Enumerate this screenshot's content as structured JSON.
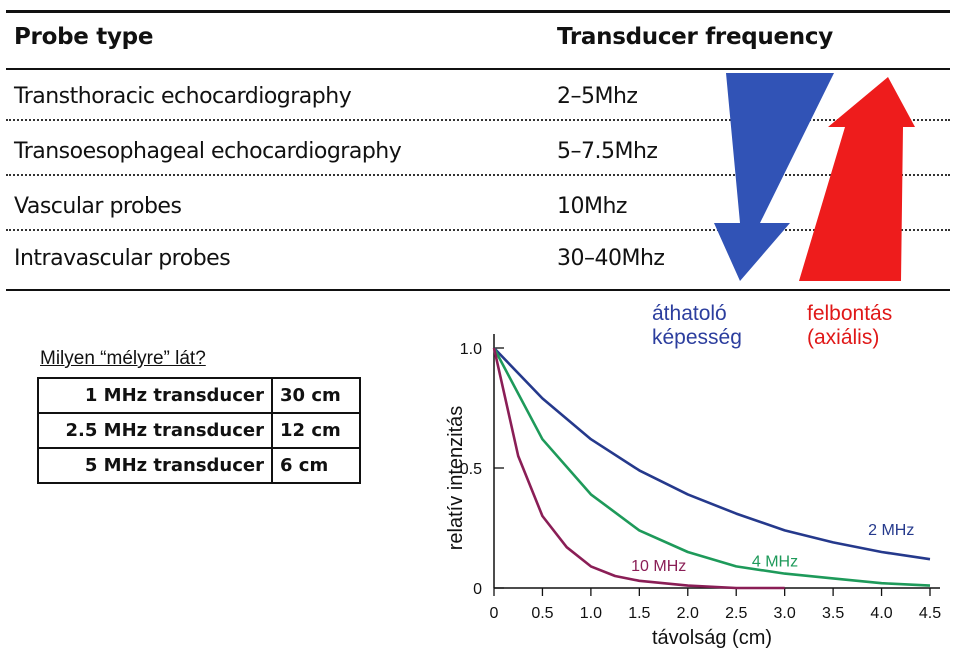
{
  "freq_table": {
    "headers": [
      "Probe type",
      "Transducer frequency"
    ],
    "rows": [
      {
        "probe": "Transthoracic echocardiography",
        "freq": "2–5Mhz"
      },
      {
        "probe": "Transoesophageal echocardiography",
        "freq": "5–7.5Mhz"
      },
      {
        "probe": "Vascular probes",
        "freq": "10Mhz"
      },
      {
        "probe": "Intravascular probes",
        "freq": "30–40Mhz"
      }
    ]
  },
  "arrows": {
    "down_color": "#3153b6",
    "up_color": "#ee1c1c",
    "down_label": [
      "áthatoló",
      "képesség"
    ],
    "up_label": [
      "felbontás",
      "(axiális)"
    ]
  },
  "depth": {
    "question": "Milyen “mélyre” lát?",
    "rows": [
      {
        "k": "1 MHz transducer",
        "v": "30 cm"
      },
      {
        "k": "2.5 MHz transducer",
        "v": "12 cm"
      },
      {
        "k": "5 MHz transducer",
        "v": "6 cm"
      }
    ]
  },
  "chart_data": {
    "type": "line",
    "xlabel": "távolság (cm)",
    "ylabel": "relatív intenzitás",
    "xlim": [
      0,
      4.5
    ],
    "ylim": [
      0,
      1.0
    ],
    "x_ticks": [
      "0",
      "0.5",
      "1.0",
      "1.5",
      "2.0",
      "2.5",
      "3.0",
      "3.5",
      "4.0",
      "4.5"
    ],
    "y_ticks": [
      {
        "value": 0,
        "label": "0"
      },
      {
        "value": 0.5,
        "label": "0.5"
      },
      {
        "value": 1.0,
        "label": "1.0"
      }
    ],
    "series": [
      {
        "name": "2 MHz",
        "color": "#25398c",
        "x": [
          0,
          0.5,
          1.0,
          1.5,
          2.0,
          2.5,
          3.0,
          3.5,
          4.0,
          4.5
        ],
        "y": [
          1.0,
          0.79,
          0.62,
          0.49,
          0.39,
          0.31,
          0.24,
          0.19,
          0.15,
          0.12
        ]
      },
      {
        "name": "4 MHz",
        "color": "#1e9a5a",
        "x": [
          0,
          0.5,
          1.0,
          1.5,
          2.0,
          2.5,
          3.0,
          3.5,
          4.0,
          4.5
        ],
        "y": [
          1.0,
          0.62,
          0.39,
          0.24,
          0.15,
          0.09,
          0.06,
          0.04,
          0.02,
          0.01
        ]
      },
      {
        "name": "10 MHz",
        "color": "#8a1e56",
        "x": [
          0,
          0.25,
          0.5,
          0.75,
          1.0,
          1.25,
          1.5,
          2.0,
          2.5,
          3.0
        ],
        "y": [
          1.0,
          0.55,
          0.3,
          0.17,
          0.09,
          0.05,
          0.03,
          0.01,
          0.0,
          0.0
        ]
      }
    ]
  }
}
